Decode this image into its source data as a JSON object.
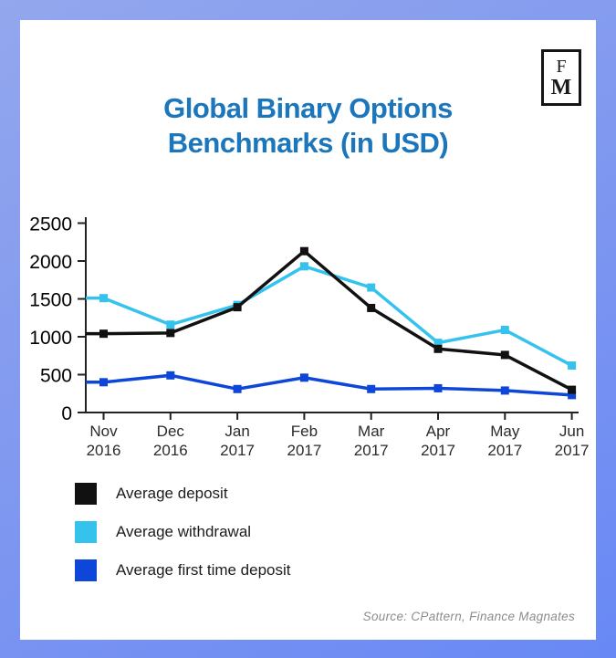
{
  "title": "Global Binary Options Benchmarks (in USD)",
  "logo": {
    "top": "F",
    "bottom": "M"
  },
  "source": "Source: CPattern, Finance Magnates",
  "colors": {
    "title": "#1b76bc",
    "frame": [
      "#93a7ee",
      "#6888f5"
    ],
    "axis": "#222222"
  },
  "chart_data": {
    "type": "line",
    "title": "Global Binary Options Benchmarks (in USD)",
    "categories": [
      "Nov 2016",
      "Dec 2016",
      "Jan 2017",
      "Feb 2017",
      "Mar 2017",
      "Apr 2017",
      "May 2017",
      "Jun 2017"
    ],
    "series": [
      {
        "name": "Average deposit",
        "color": "#111111",
        "values": [
          1040,
          1050,
          1390,
          2130,
          1380,
          840,
          760,
          300
        ]
      },
      {
        "name": "Average withdrawal",
        "color": "#35c3ee",
        "values": [
          1510,
          1160,
          1420,
          1930,
          1650,
          920,
          1090,
          620
        ]
      },
      {
        "name": "Average first time deposit",
        "color": "#0e46d9",
        "values": [
          400,
          490,
          310,
          460,
          310,
          320,
          290,
          230
        ]
      }
    ],
    "xlabel": "",
    "ylabel": "",
    "ylim": [
      0,
      2500
    ],
    "y_ticks": [
      0,
      500,
      1000,
      1500,
      2000,
      2500
    ],
    "grid": false,
    "marker": "square",
    "legend_position": "bottom-left"
  }
}
